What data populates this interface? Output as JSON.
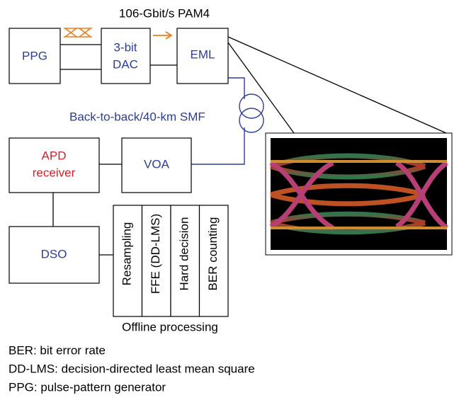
{
  "title": "106-Gbit/s PAM4",
  "nodes": [
    {
      "label": [
        "PPG"
      ]
    },
    {
      "label": [
        "3-bit",
        "DAC"
      ]
    },
    {
      "label": [
        "EML"
      ]
    },
    {
      "label": [
        "APD",
        "receiver"
      ]
    },
    {
      "label": [
        "VOA"
      ]
    },
    {
      "label": [
        "DSO"
      ]
    }
  ],
  "fiber_label": "Back-to-back/40-km SMF",
  "processing": {
    "steps": [
      "Resampling",
      "FFE (DD-LMS)",
      "Hard decision",
      "BER counting"
    ],
    "caption": "Offline processing"
  },
  "abbreviations": [
    "BER: bit error rate",
    "DD-LMS: decision-directed least mean square",
    "PPG: pulse-pattern generator"
  ]
}
